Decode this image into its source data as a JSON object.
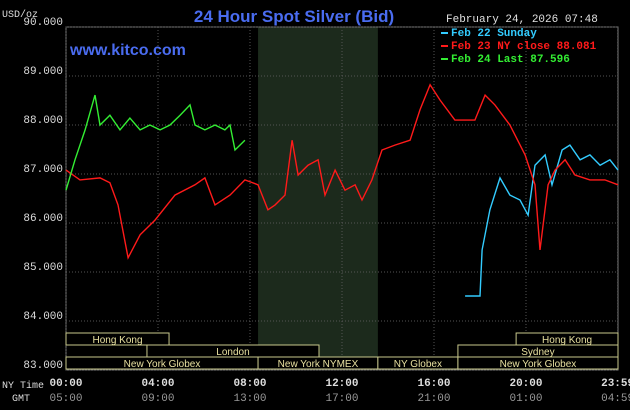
{
  "chart_data": {
    "type": "line",
    "title": "24 Hour Spot Silver (Bid)",
    "unit_label": "USD/oz",
    "timestamp": "February 24, 2026 07:48",
    "watermark": "www.kitco.com",
    "x_row_labels": [
      "NY Time",
      "GMT"
    ],
    "xlim": [
      0,
      24
    ],
    "ylim": [
      83,
      90
    ],
    "grid": true,
    "legend": "top-right",
    "yticks": [
      {
        "value": 83,
        "label": "83.000"
      },
      {
        "value": 84,
        "label": "84.000"
      },
      {
        "value": 85,
        "label": "85.000"
      },
      {
        "value": 86,
        "label": "86.000"
      },
      {
        "value": 87,
        "label": "87.000"
      },
      {
        "value": 88,
        "label": "88.000"
      },
      {
        "value": 89,
        "label": "89.000"
      },
      {
        "value": 90,
        "label": "90.000"
      }
    ],
    "xticks": [
      {
        "value": 0,
        "label": "00:00"
      },
      {
        "value": 4,
        "label": "04:00"
      },
      {
        "value": 8,
        "label": "08:00"
      },
      {
        "value": 12,
        "label": "12:00"
      },
      {
        "value": 16,
        "label": "16:00"
      },
      {
        "value": 20,
        "label": "20:00"
      },
      {
        "value": 23.983,
        "label": "23:59"
      }
    ],
    "gmt_labels": [
      "05:00",
      "09:00",
      "13:00",
      "17:00",
      "21:00",
      "01:00",
      "04:59"
    ],
    "session_rows": [
      [
        {
          "name": "Hong Kong",
          "start": 0,
          "end": 4.48
        },
        {
          "name": "Hong Kong",
          "start": 19.57,
          "end": 24
        }
      ],
      [
        {
          "name": "London",
          "start": 3.52,
          "end": 11
        },
        {
          "name": "Sydney",
          "start": 17.04,
          "end": 24
        }
      ],
      [
        {
          "name": "New York Globex",
          "start": 0,
          "end": 8.35
        },
        {
          "name": "New York NYMEX",
          "start": 8.35,
          "end": 13.56,
          "shaded": true
        },
        {
          "name": "NY Globex",
          "start": 13.56,
          "end": 17.04
        },
        {
          "name": "New York Globex",
          "start": 17.04,
          "end": 24
        }
      ]
    ],
    "series": [
      {
        "name": "Feb 22 Sunday",
        "color": "#33ccff",
        "x": [
          17.35,
          18.0,
          18.09,
          18.43,
          18.87,
          19.3,
          19.74,
          20.09,
          20.39,
          20.83,
          21.13,
          21.57,
          21.91,
          22.35,
          22.78,
          23.22,
          23.65,
          24
        ],
        "values": [
          84.51,
          84.51,
          85.45,
          86.27,
          86.92,
          86.57,
          86.47,
          86.16,
          87.18,
          87.39,
          86.78,
          87.49,
          87.59,
          87.29,
          87.39,
          87.18,
          87.29,
          87.08
        ]
      },
      {
        "name": "Feb 23 NY close 88.081",
        "color": "#ff1a1a",
        "x": [
          0,
          0.61,
          1.48,
          1.91,
          2.26,
          2.7,
          3.22,
          3.87,
          4.74,
          5.61,
          6.04,
          6.48,
          7.13,
          7.78,
          8.35,
          8.78,
          9.09,
          9.52,
          9.83,
          10.09,
          10.52,
          10.96,
          11.26,
          11.7,
          12.13,
          12.57,
          12.87,
          13.3,
          13.74,
          14.3,
          14.96,
          15.39,
          15.83,
          16.26,
          16.91,
          17.78,
          18.22,
          18.65,
          19.3,
          19.96,
          20.39,
          20.61,
          20.96,
          21.26,
          21.7,
          22.13,
          22.78,
          23.43,
          24
        ],
        "values": [
          87.08,
          86.88,
          86.92,
          86.82,
          86.37,
          85.29,
          85.76,
          86.06,
          86.57,
          86.78,
          86.92,
          86.37,
          86.57,
          86.88,
          86.78,
          86.27,
          86.37,
          86.57,
          87.69,
          86.98,
          87.18,
          87.29,
          86.57,
          87.08,
          86.67,
          86.78,
          86.47,
          86.88,
          87.49,
          87.59,
          87.69,
          88.31,
          88.82,
          88.51,
          88.1,
          88.1,
          88.61,
          88.41,
          88.0,
          87.39,
          86.78,
          85.45,
          86.78,
          87.08,
          87.29,
          86.98,
          86.88,
          86.88,
          86.78
        ]
      },
      {
        "name": "Feb 24 Last 87.596",
        "color": "#33ee33",
        "x": [
          0,
          0.39,
          0.83,
          1.26,
          1.48,
          1.91,
          2.35,
          2.78,
          3.22,
          3.65,
          4.09,
          4.52,
          4.96,
          5.39,
          5.61,
          6.04,
          6.48,
          6.91,
          7.13,
          7.35,
          7.78
        ],
        "values": [
          86.67,
          87.29,
          87.9,
          88.61,
          88.0,
          88.2,
          87.9,
          88.14,
          87.9,
          88.0,
          87.9,
          88.0,
          88.2,
          88.41,
          88.0,
          87.9,
          88.0,
          87.9,
          88.0,
          87.49,
          87.69
        ]
      }
    ]
  }
}
